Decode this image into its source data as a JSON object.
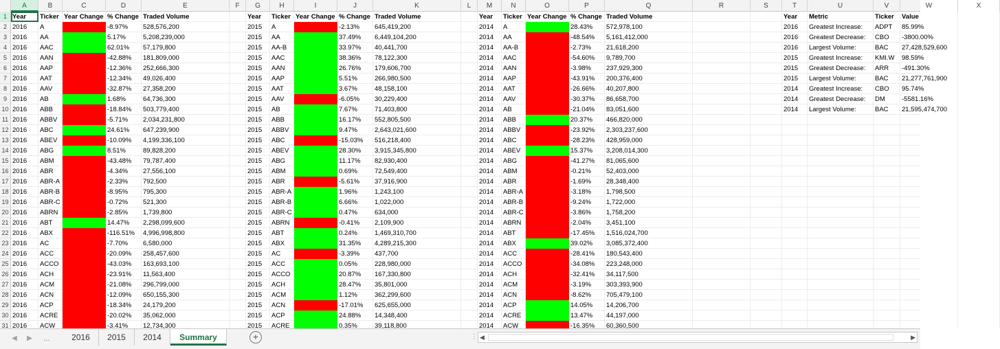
{
  "columns": [
    "A",
    "B",
    "C",
    "D",
    "E",
    "F",
    "G",
    "H",
    "I",
    "J",
    "K",
    "L",
    "M",
    "N",
    "O",
    "P",
    "Q",
    "R",
    "S",
    "T",
    "U",
    "V",
    "W",
    "X"
  ],
  "rows": [
    "1",
    "2",
    "3",
    "4",
    "5",
    "6",
    "7",
    "8",
    "9",
    "10",
    "11",
    "12",
    "13",
    "14",
    "15",
    "16",
    "17",
    "18",
    "19",
    "20",
    "21",
    "22",
    "23",
    "24",
    "25",
    "26",
    "27",
    "28",
    "29",
    "30",
    "31"
  ],
  "headers": {
    "year": "Year",
    "ticker": "Ticker",
    "year_change": "Year Change",
    "pct_change": "% Change",
    "volume": "Traded Volume",
    "metric": "Metric",
    "value": "Value"
  },
  "colors": {
    "positive": "#00ff00",
    "negative": "#ff0000",
    "excel_green": "#217346"
  },
  "blocks": [
    {
      "year": "2016",
      "rows": [
        [
          "A",
          "-",
          "-8.97%",
          "528,576,200"
        ],
        [
          "AA",
          "+",
          "5.17%",
          "5,208,239,000"
        ],
        [
          "AAC",
          "+",
          "62.01%",
          "57,179,800"
        ],
        [
          "AAN",
          "-",
          "-42.88%",
          "181,809,000"
        ],
        [
          "AAP",
          "-",
          "-12.36%",
          "252,666,300"
        ],
        [
          "AAT",
          "-",
          "-12.34%",
          "49,026,400"
        ],
        [
          "AAV",
          "-",
          "-32.87%",
          "27,358,200"
        ],
        [
          "AB",
          "+",
          "1.68%",
          "64,736,300"
        ],
        [
          "ABB",
          "-",
          "-18.84%",
          "503,779,400"
        ],
        [
          "ABBV",
          "-",
          "-5.71%",
          "2,034,231,800"
        ],
        [
          "ABC",
          "+",
          "24.61%",
          "647,239,900"
        ],
        [
          "ABEV",
          "-",
          "-10.09%",
          "4,199,336,100"
        ],
        [
          "ABG",
          "+",
          "8.51%",
          "89,828,200"
        ],
        [
          "ABM",
          "-",
          "-43.48%",
          "79,787,400"
        ],
        [
          "ABR",
          "-",
          "-4.34%",
          "27,556,100"
        ],
        [
          "ABR-A",
          "-",
          "-2.33%",
          "792,500"
        ],
        [
          "ABR-B",
          "-",
          "-8.95%",
          "795,300"
        ],
        [
          "ABR-C",
          "-",
          "-0.72%",
          "521,300"
        ],
        [
          "ABRN",
          "-",
          "-2.85%",
          "1,739,800"
        ],
        [
          "ABT",
          "+",
          "14.47%",
          "2,298,099,600"
        ],
        [
          "ABX",
          "-",
          "-116.51%",
          "4,996,998,800"
        ],
        [
          "AC",
          "-",
          "-7.70%",
          "6,580,000"
        ],
        [
          "ACC",
          "-",
          "-20.09%",
          "258,457,600"
        ],
        [
          "ACCO",
          "-",
          "-43.03%",
          "163,693,100"
        ],
        [
          "ACH",
          "-",
          "-23.91%",
          "11,563,400"
        ],
        [
          "ACM",
          "-",
          "-21.08%",
          "296,799,000"
        ],
        [
          "ACN",
          "-",
          "-12.09%",
          "650,155,300"
        ],
        [
          "ACP",
          "-",
          "-18.34%",
          "24,179,200"
        ],
        [
          "ACRE",
          "-",
          "-20.02%",
          "35,062,000"
        ],
        [
          "ACW",
          "-",
          "-3.41%",
          "12,734,300"
        ]
      ]
    },
    {
      "year": "2015",
      "rows": [
        [
          "A",
          "-",
          "-2.13%",
          "645,419,200"
        ],
        [
          "AA",
          "+",
          "37.49%",
          "6,449,104,200"
        ],
        [
          "AA-B",
          "+",
          "33.97%",
          "40,441,700"
        ],
        [
          "AAC",
          "+",
          "38.36%",
          "78,122,300"
        ],
        [
          "AAN",
          "+",
          "26.76%",
          "179,606,700"
        ],
        [
          "AAP",
          "+",
          "5.51%",
          "266,980,500"
        ],
        [
          "AAT",
          "+",
          "3.67%",
          "48,158,100"
        ],
        [
          "AAV",
          "-",
          "-6.05%",
          "30,229,400"
        ],
        [
          "AB",
          "+",
          "7.67%",
          "71,403,800"
        ],
        [
          "ABB",
          "+",
          "16.17%",
          "552,805,500"
        ],
        [
          "ABBV",
          "+",
          "9.47%",
          "2,643,021,600"
        ],
        [
          "ABC",
          "-",
          "-15.03%",
          "516,218,400"
        ],
        [
          "ABEV",
          "+",
          "28.30%",
          "3,915,345,800"
        ],
        [
          "ABG",
          "+",
          "11.17%",
          "82,930,400"
        ],
        [
          "ABM",
          "+",
          "0.69%",
          "72,549,400"
        ],
        [
          "ABR",
          "-",
          "-5.61%",
          "37,916,900"
        ],
        [
          "ABR-A",
          "+",
          "1.96%",
          "1,243,100"
        ],
        [
          "ABR-B",
          "+",
          "6.66%",
          "1,022,000"
        ],
        [
          "ABR-C",
          "+",
          "0.47%",
          "634,000"
        ],
        [
          "ABRN",
          "-",
          "-0.41%",
          "2,109,900"
        ],
        [
          "ABT",
          "+",
          "0.24%",
          "1,469,310,700"
        ],
        [
          "ABX",
          "+",
          "31.35%",
          "4,289,215,300"
        ],
        [
          "AC",
          "-",
          "-3.39%",
          "437,700"
        ],
        [
          "ACC",
          "+",
          "0.05%",
          "228,980,000"
        ],
        [
          "ACCO",
          "+",
          "20.87%",
          "167,330,800"
        ],
        [
          "ACH",
          "+",
          "28.47%",
          "35,801,000"
        ],
        [
          "ACM",
          "+",
          "1.12%",
          "362,299,600"
        ],
        [
          "ACN",
          "-",
          "-17.01%",
          "625,655,000"
        ],
        [
          "ACP",
          "+",
          "24.88%",
          "14,348,400"
        ],
        [
          "ACRE",
          "+",
          "0.35%",
          "39,118,800"
        ]
      ]
    },
    {
      "year": "2014",
      "rows": [
        [
          "A",
          "+",
          "28.43%",
          "572,978,100"
        ],
        [
          "AA",
          "-",
          "-48.54%",
          "5,161,412,000"
        ],
        [
          "AA-B",
          "-",
          "-2.73%",
          "21,618,200"
        ],
        [
          "AAC",
          "-",
          "-54.60%",
          "9,789,700"
        ],
        [
          "AAN",
          "-",
          "-3.98%",
          "237,929,300"
        ],
        [
          "AAP",
          "-",
          "-43.91%",
          "200,376,400"
        ],
        [
          "AAT",
          "-",
          "-26.66%",
          "40,207,800"
        ],
        [
          "AAV",
          "-",
          "-30.37%",
          "86,658,700"
        ],
        [
          "AB",
          "-",
          "-21.04%",
          "83,051,600"
        ],
        [
          "ABB",
          "+",
          "20.37%",
          "466,820,000"
        ],
        [
          "ABBV",
          "-",
          "-23.92%",
          "2,303,237,600"
        ],
        [
          "ABC",
          "-",
          "-28.23%",
          "428,959,000"
        ],
        [
          "ABEV",
          "+",
          "15.37%",
          "3,208,014,300"
        ],
        [
          "ABG",
          "-",
          "-41.27%",
          "81,065,600"
        ],
        [
          "ABM",
          "-",
          "-0.21%",
          "52,403,000"
        ],
        [
          "ABR",
          "-",
          "-1.69%",
          "28,348,400"
        ],
        [
          "ABR-A",
          "-",
          "-3.18%",
          "1,798,500"
        ],
        [
          "ABR-B",
          "-",
          "-9.24%",
          "1,722,000"
        ],
        [
          "ABR-C",
          "-",
          "-3.86%",
          "1,758,200"
        ],
        [
          "ABRN",
          "-",
          "-2.04%",
          "3,451,100"
        ],
        [
          "ABT",
          "-",
          "-17.45%",
          "1,516,024,700"
        ],
        [
          "ABX",
          "+",
          "39.02%",
          "3,085,372,400"
        ],
        [
          "ACC",
          "-",
          "-28.41%",
          "180,543,400"
        ],
        [
          "ACCO",
          "-",
          "-34.08%",
          "223,248,000"
        ],
        [
          "ACH",
          "-",
          "-32.41%",
          "34,117,500"
        ],
        [
          "ACM",
          "-",
          "-3.19%",
          "303,393,900"
        ],
        [
          "ACN",
          "-",
          "-8.62%",
          "705,479,100"
        ],
        [
          "ACP",
          "+",
          "14.05%",
          "14,206,700"
        ],
        [
          "ACRE",
          "+",
          "13.47%",
          "44,197,000"
        ],
        [
          "ACW",
          "-",
          "-16.35%",
          "60,360,500"
        ]
      ]
    }
  ],
  "summary": [
    [
      "2016",
      "Greatest Increase:",
      "ADPT",
      "85.99%"
    ],
    [
      "2016",
      "Greatest Decrease:",
      "CBO",
      "-3800.00%"
    ],
    [
      "2016",
      "Largest Volume:",
      "BAC",
      "27,428,529,600"
    ],
    [
      "2015",
      "Greatest Increase:",
      "KMI.W",
      "98.59%"
    ],
    [
      "2015",
      "Greatest Decrease:",
      "ARR",
      "-491.30%"
    ],
    [
      "2015",
      "Largest Volume:",
      "BAC",
      "21,277,761,900"
    ],
    [
      "2014",
      "Greatest Increase:",
      "CBO",
      "95.74%"
    ],
    [
      "2014",
      "Greatest Decrease:",
      "DM",
      "-5581.16%"
    ],
    [
      "2014",
      "Largest Volume:",
      "BAC",
      "21,595,474,700"
    ]
  ],
  "tabs": {
    "t1": "2016",
    "t2": "2015",
    "t3": "2014",
    "t4": "Summary"
  },
  "tabbar": {
    "ellipsis": "...",
    "add": "+"
  }
}
